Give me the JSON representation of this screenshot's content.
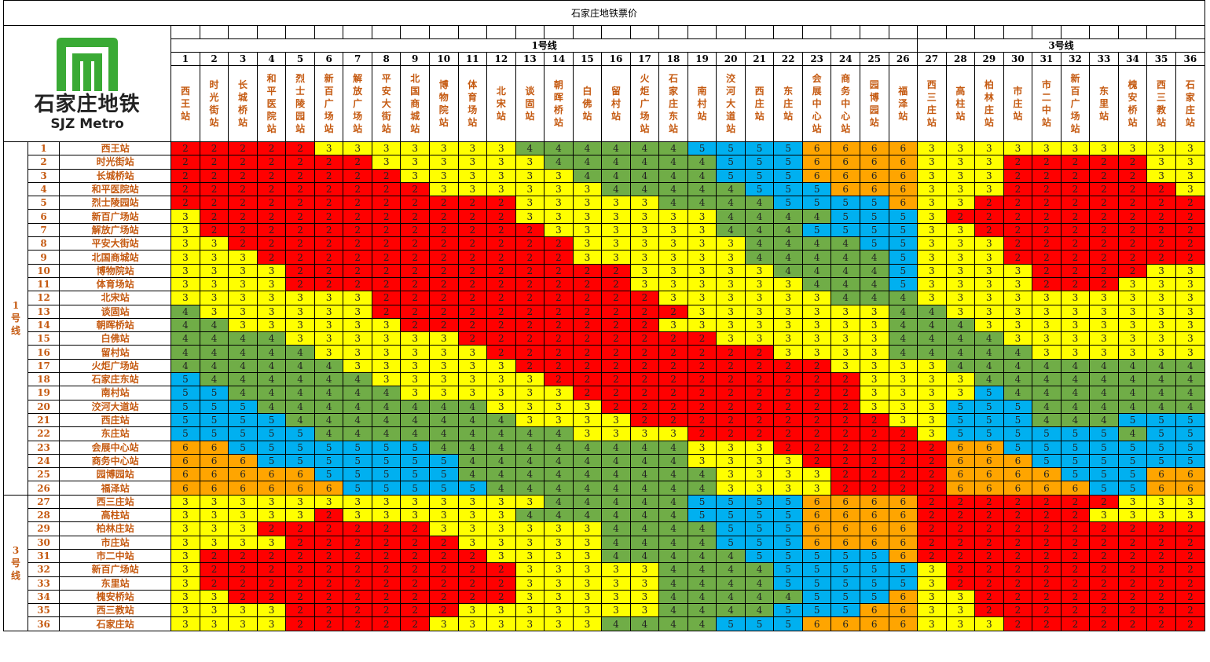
{
  "title": "石家庄地铁票价",
  "logo": {
    "cn": "石家庄地铁",
    "en": "SJZ Metro",
    "color": "#3aaa35"
  },
  "colors": {
    "2": "#ff0000",
    "3": "#ffff00",
    "4": "#70ad47",
    "5": "#00b0f0",
    "6": "#ffa500"
  },
  "lines": [
    {
      "name": "1号线",
      "count": 26
    },
    {
      "name": "3号线",
      "count": 10
    }
  ],
  "stations": [
    "西王站",
    "时光街站",
    "长城桥站",
    "和平医院站",
    "烈士陵园站",
    "新百广场站",
    "解放广场站",
    "平安大街站",
    "北国商城站",
    "博物院站",
    "体育场站",
    "北宋站",
    "谈固站",
    "朝晖桥站",
    "白佛站",
    "留村站",
    "火炬广场站",
    "石家庄东站",
    "南村站",
    "洨河大道站",
    "西庄站",
    "东庄站",
    "会展中心站",
    "商务中心站",
    "园博园站",
    "福泽站",
    "西三庄站",
    "高柱站",
    "柏林庄站",
    "市庄站",
    "市二中站",
    "新百广场站",
    "东里站",
    "槐安桥站",
    "西三教站",
    "石家庄站"
  ],
  "fares": [
    "222223333333444444555566663333333333",
    "222222233333344444455566663332222233",
    "222222223333334444455566663332222233",
    "222222222333333444445556663332222223",
    "222222222222333334444555563322222222",
    "322222222222333333344445553222222222",
    "322222222222233333344455553322222222",
    "332222222222223333334444553332222222",
    "333222222222223333334444453332222222",
    "333322222222222233333444453333222233",
    "333322222222222233333344453333222333",
    "333333322222222223333334443333333333",
    "433333322222222222333333344333333333",
    "443333332222222223333333344433333333",
    "444433333322222222233333344443333333",
    "444443333332222222222333344444333333",
    "444444333333222222222223333444444444",
    "544444433333322222222222333344444444",
    "554444443333332222222222333354444444",
    "555444444443333222222222333555444444",
    "555544444444333322222222233555444555",
    "555554444444443333222222223555555455",
    "665555555444444444333222222665555555",
    "666555555544444444333322222666555555",
    "666665555544444444433332222666655566",
    "666666555554444444433332222666665566",
    "333333333333344444555566662222222333",
    "333332333333444444555566662222223333",
    "333222222333333444455566662222222222",
    "333322222233333444455566662222222222",
    "322222222223333444445555562222222222",
    "322222222222333334444555553222222222",
    "322222222222333334444555553222222222",
    "332222222222333334444455563322222222",
    "333322222233333334444555663322222222",
    "333322222333333444455566663332222222"
  ]
}
